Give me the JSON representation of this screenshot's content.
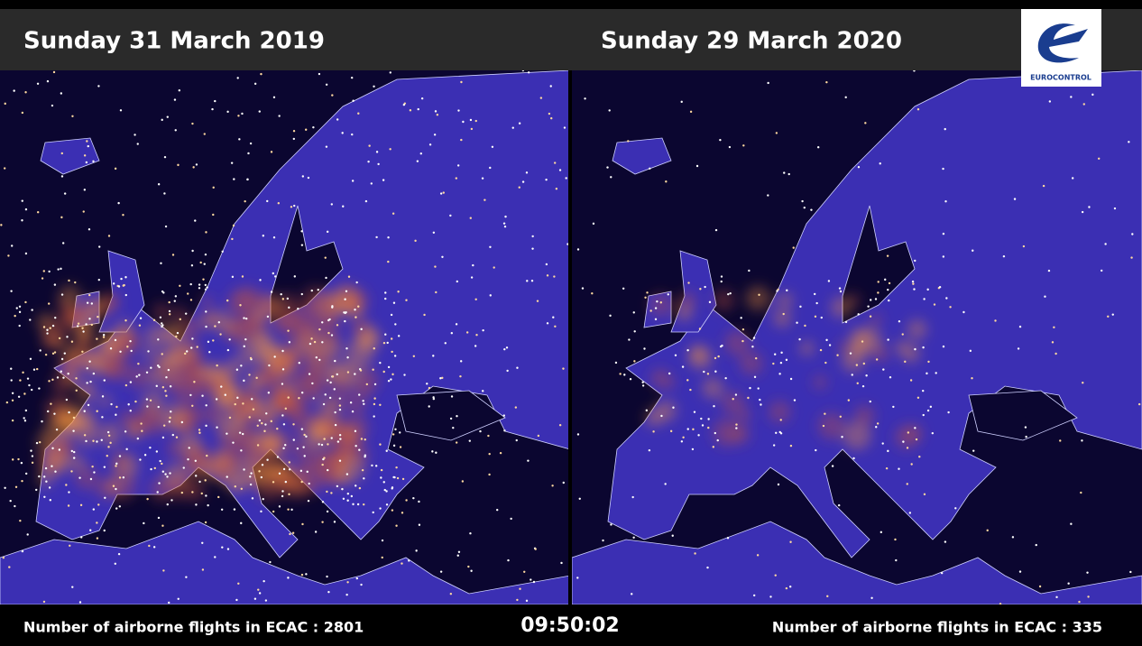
{
  "header": {
    "left_date": "Sunday 31 March 2019",
    "right_date": "Sunday 29 March 2020",
    "logo_text": "EUROCONTROL"
  },
  "footer": {
    "left_count": "Number of airborne flights in ECAC : 2801",
    "clock": "09:50:02",
    "right_count": "Number of airborne flights in ECAC : 335"
  }
}
